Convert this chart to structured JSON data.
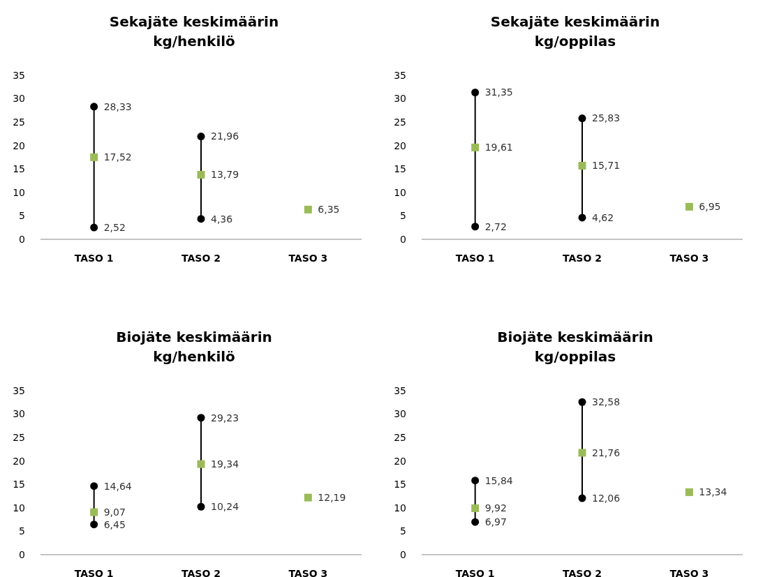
{
  "chart_data": [
    {
      "type": "scatter",
      "title": "Sekajäte keskimäärin\nkg/henkilö",
      "categories": [
        "TASO 1",
        "TASO 2",
        "TASO 3"
      ],
      "ylim": [
        0,
        35
      ],
      "yticks": [
        0,
        5,
        10,
        15,
        20,
        25,
        30,
        35
      ],
      "series": [
        {
          "color": "#000000",
          "marker": "circle",
          "values": [
            28.33,
            21.96,
            null
          ],
          "value_labels": [
            "28,33",
            "21,96",
            null
          ]
        },
        {
          "color": "#9bbb59",
          "marker": "square",
          "values": [
            17.52,
            13.79,
            6.35
          ],
          "value_labels": [
            "17,52",
            "13,79",
            "6,35"
          ]
        },
        {
          "color": "#000000",
          "marker": "circle",
          "values": [
            2.52,
            4.36,
            null
          ],
          "value_labels": [
            "2,52",
            "4,36",
            null
          ]
        }
      ]
    },
    {
      "type": "scatter",
      "title": "Sekajäte keskimäärin\nkg/oppilas",
      "categories": [
        "TASO 1",
        "TASO 2",
        "TASO 3"
      ],
      "ylim": [
        0,
        35
      ],
      "yticks": [
        0,
        5,
        10,
        15,
        20,
        25,
        30,
        35
      ],
      "series": [
        {
          "color": "#000000",
          "marker": "circle",
          "values": [
            31.35,
            25.83,
            null
          ],
          "value_labels": [
            "31,35",
            "25,83",
            null
          ]
        },
        {
          "color": "#9bbb59",
          "marker": "square",
          "values": [
            19.61,
            15.71,
            6.95
          ],
          "value_labels": [
            "19,61",
            "15,71",
            "6,95"
          ]
        },
        {
          "color": "#000000",
          "marker": "circle",
          "values": [
            2.72,
            4.62,
            null
          ],
          "value_labels": [
            "2,72",
            "4,62",
            null
          ]
        }
      ]
    },
    {
      "type": "scatter",
      "title": "Biojäte keskimäärin\nkg/henkilö",
      "categories": [
        "TASO 1",
        "TASO 2",
        "TASO 3"
      ],
      "ylim": [
        0,
        35
      ],
      "yticks": [
        0,
        5,
        10,
        15,
        20,
        25,
        30,
        35
      ],
      "series": [
        {
          "color": "#000000",
          "marker": "circle",
          "values": [
            14.64,
            29.23,
            null
          ],
          "value_labels": [
            "14,64",
            "29,23",
            null
          ]
        },
        {
          "color": "#9bbb59",
          "marker": "square",
          "values": [
            9.07,
            19.34,
            12.19
          ],
          "value_labels": [
            "9,07",
            "19,34",
            "12,19"
          ]
        },
        {
          "color": "#000000",
          "marker": "circle",
          "values": [
            6.45,
            10.24,
            null
          ],
          "value_labels": [
            "6,45",
            "10,24",
            null
          ]
        }
      ]
    },
    {
      "type": "scatter",
      "title": "Biojäte keskimäärin\nkg/oppilas",
      "categories": [
        "TASO 1",
        "TASO 2",
        "TASO 3"
      ],
      "ylim": [
        0,
        35
      ],
      "yticks": [
        0,
        5,
        10,
        15,
        20,
        25,
        30,
        35
      ],
      "series": [
        {
          "color": "#000000",
          "marker": "circle",
          "values": [
            15.84,
            32.58,
            null
          ],
          "value_labels": [
            "15,84",
            "32,58",
            null
          ]
        },
        {
          "color": "#9bbb59",
          "marker": "square",
          "values": [
            9.92,
            21.76,
            13.34
          ],
          "value_labels": [
            "9,92",
            "21,76",
            "13,34"
          ]
        },
        {
          "color": "#000000",
          "marker": "circle",
          "values": [
            6.97,
            12.06,
            null
          ],
          "value_labels": [
            "6,97",
            "12,06",
            null
          ]
        }
      ]
    }
  ]
}
